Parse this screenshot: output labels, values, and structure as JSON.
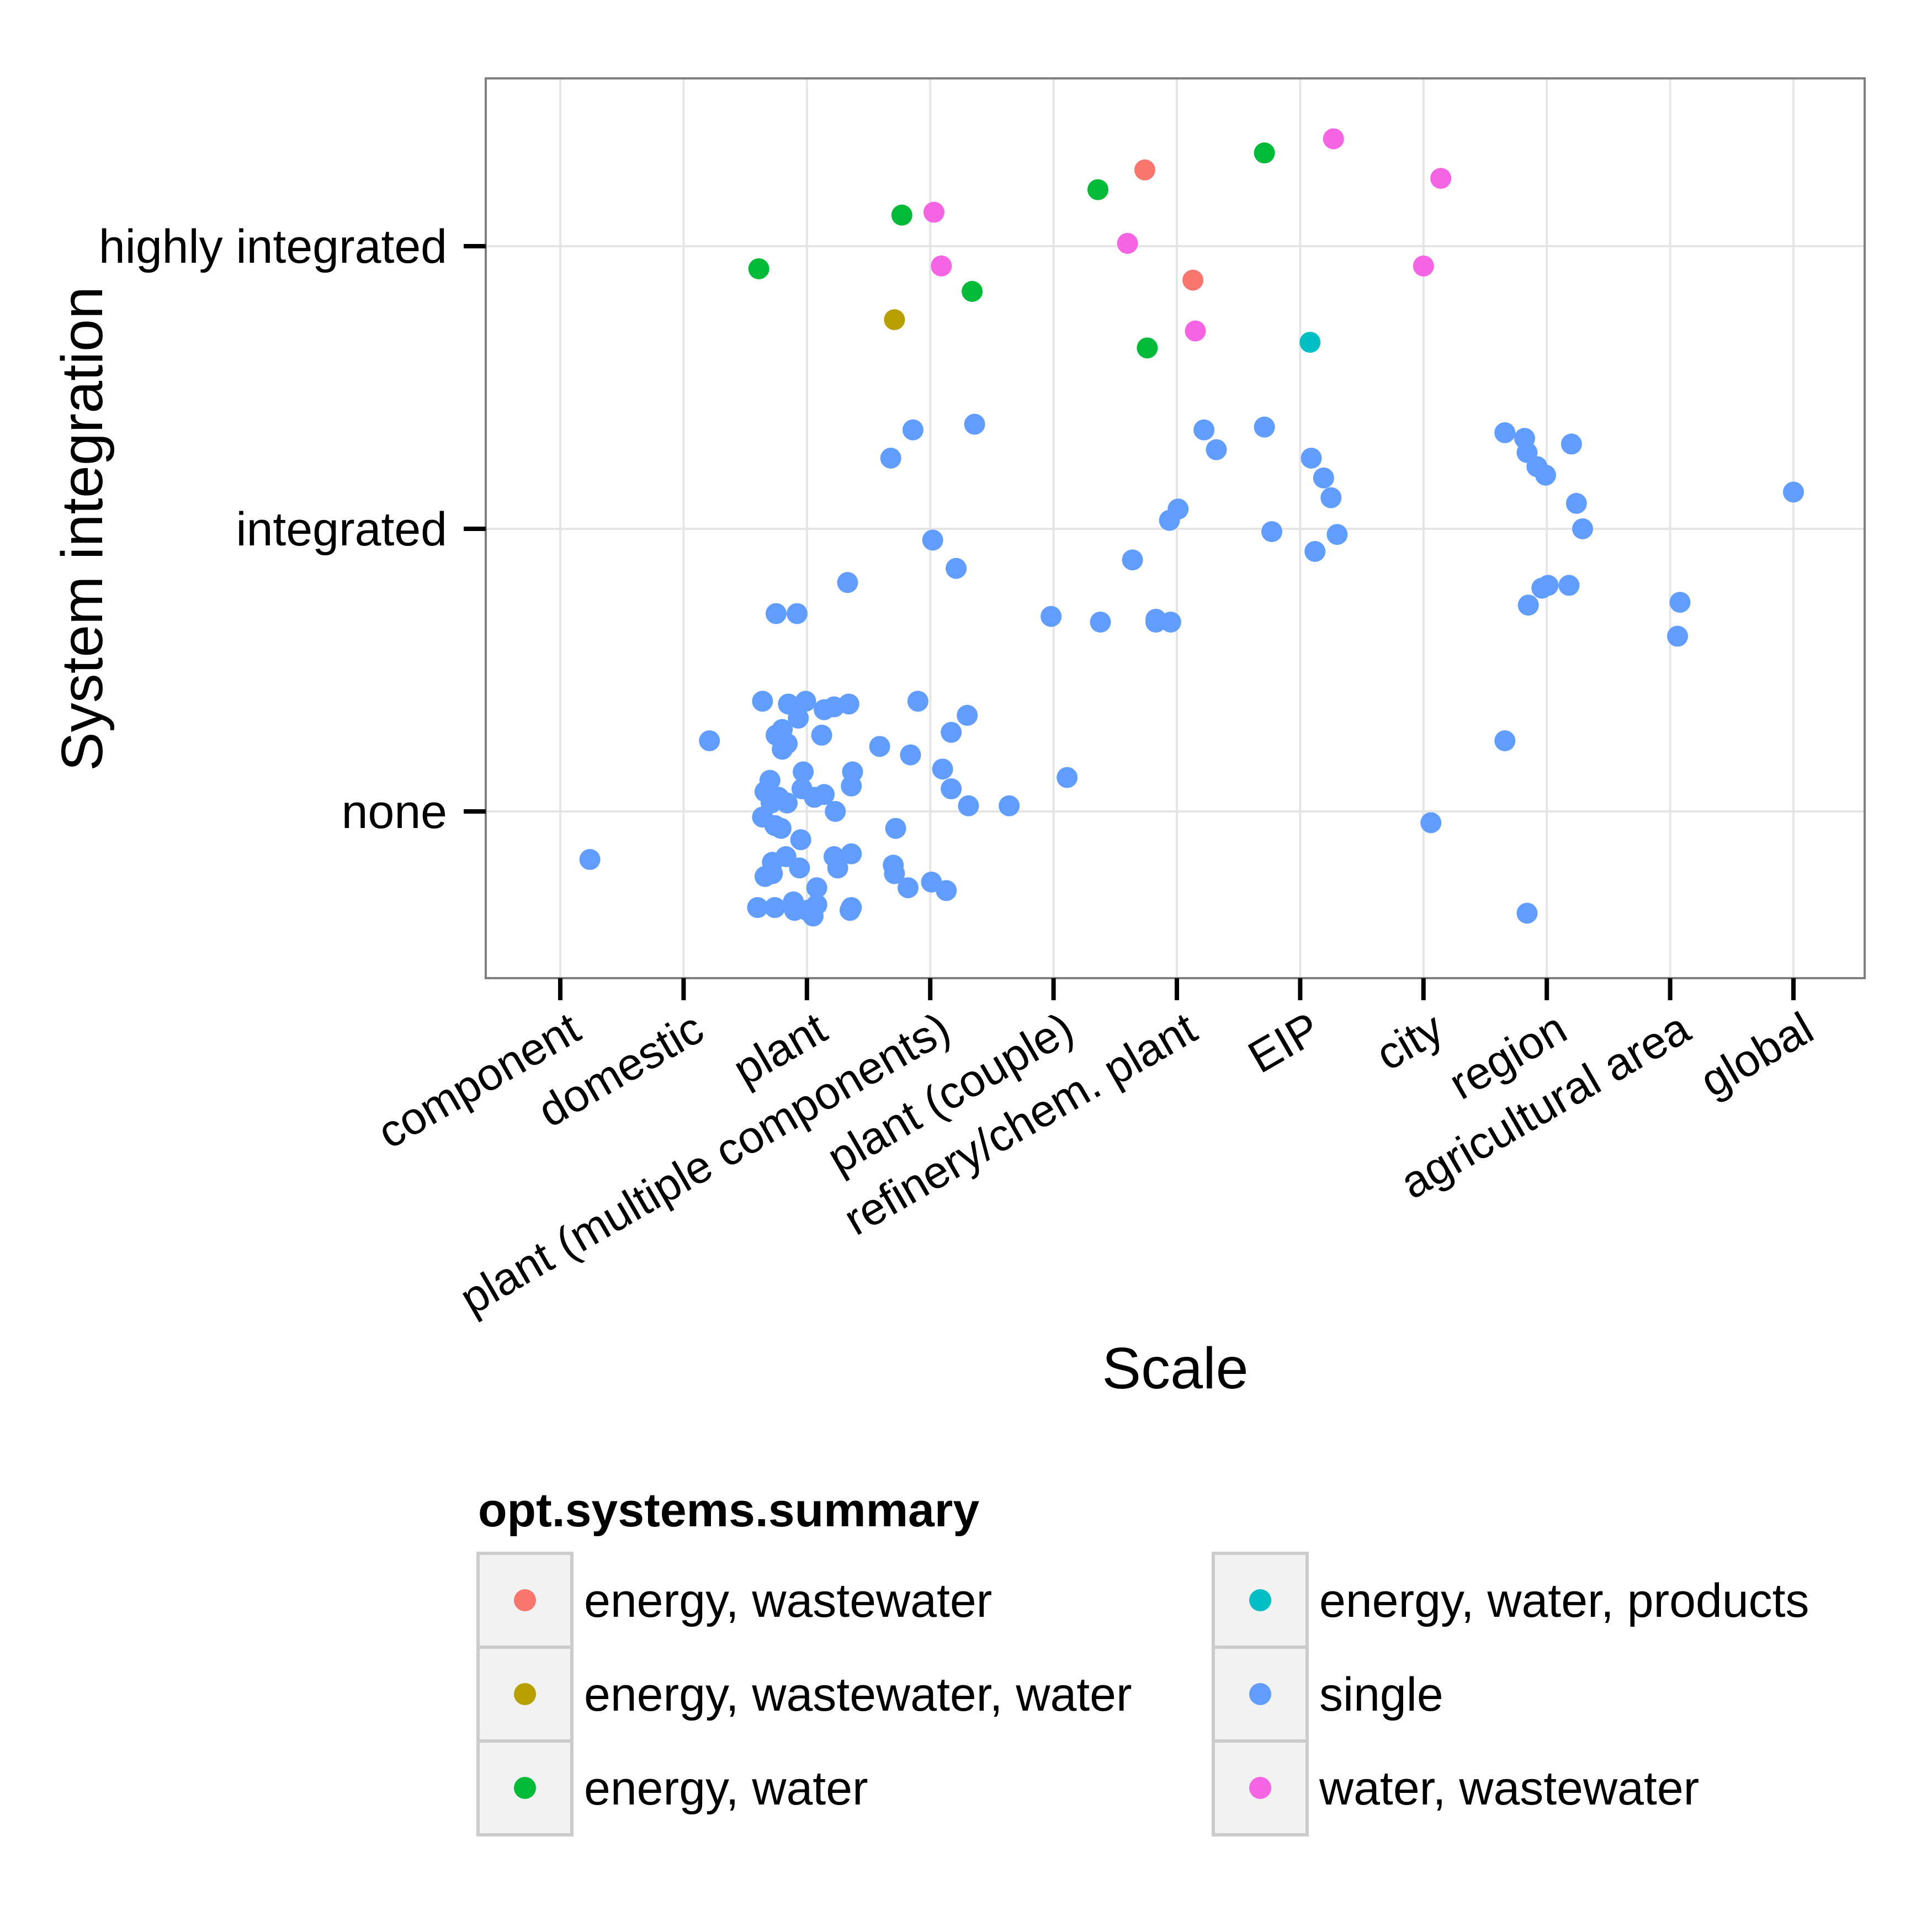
{
  "chart_data": {
    "type": "scatter",
    "title": "",
    "xlabel": "Scale",
    "ylabel": "System integration",
    "x_categories": [
      "component",
      "domestic",
      "plant",
      "plant (multiple components)",
      "plant (couple)",
      "refinery/chem. plant",
      "EIP",
      "city",
      "region",
      "agricultural area",
      "global"
    ],
    "y_categories": [
      "none",
      "integrated",
      "highly integrated"
    ],
    "ylim": [
      -0.6,
      2.6
    ],
    "grid": true,
    "legend": {
      "title": "opt.systems.summary",
      "placement": "bottom",
      "columns": 2,
      "entries": [
        {
          "label": "energy, wastewater",
          "color": "#F8766D"
        },
        {
          "label": "energy, wastewater, water",
          "color": "#B79F00"
        },
        {
          "label": "energy, water",
          "color": "#00BA38"
        },
        {
          "label": "energy, water, products",
          "color": "#00BFC4"
        },
        {
          "label": "single",
          "color": "#619CFF"
        },
        {
          "label": "water, wastewater",
          "color": "#F564E3"
        }
      ]
    },
    "series": [
      {
        "name": "energy, wastewater",
        "color": "#F8766D",
        "points": [
          {
            "x": 5.74,
            "y": 2.27
          },
          {
            "x": 6.13,
            "y": 1.88
          }
        ]
      },
      {
        "name": "energy, wastewater, water",
        "color": "#B79F00",
        "points": [
          {
            "x": 3.71,
            "y": 1.74
          }
        ]
      },
      {
        "name": "energy, water",
        "color": "#00BA38",
        "points": [
          {
            "x": 2.61,
            "y": 1.92
          },
          {
            "x": 3.77,
            "y": 2.11
          },
          {
            "x": 4.34,
            "y": 1.84
          },
          {
            "x": 5.36,
            "y": 2.2
          },
          {
            "x": 5.76,
            "y": 1.64
          },
          {
            "x": 6.71,
            "y": 2.33
          }
        ]
      },
      {
        "name": "energy, water, products",
        "color": "#00BFC4",
        "points": [
          {
            "x": 7.08,
            "y": 1.66
          }
        ]
      },
      {
        "name": "single",
        "color": "#619CFF",
        "points": [
          {
            "x": 1.24,
            "y": -0.17
          },
          {
            "x": 2.21,
            "y": 0.25
          },
          {
            "x": 2.64,
            "y": 0.39
          },
          {
            "x": 2.75,
            "y": 0.7
          },
          {
            "x": 2.92,
            "y": 0.7
          },
          {
            "x": 2.85,
            "y": 0.38
          },
          {
            "x": 2.99,
            "y": 0.39
          },
          {
            "x": 2.8,
            "y": 0.29
          },
          {
            "x": 2.93,
            "y": 0.33
          },
          {
            "x": 2.75,
            "y": 0.27
          },
          {
            "x": 2.84,
            "y": 0.24
          },
          {
            "x": 2.8,
            "y": 0.22
          },
          {
            "x": 3.12,
            "y": 0.27
          },
          {
            "x": 3.14,
            "y": 0.36
          },
          {
            "x": 3.22,
            "y": 0.37
          },
          {
            "x": 3.34,
            "y": 0.38
          },
          {
            "x": 3.33,
            "y": 0.81
          },
          {
            "x": 2.7,
            "y": 0.11
          },
          {
            "x": 2.71,
            "y": 0.03
          },
          {
            "x": 2.66,
            "y": 0.07
          },
          {
            "x": 2.77,
            "y": 0.05
          },
          {
            "x": 2.84,
            "y": 0.03
          },
          {
            "x": 2.96,
            "y": 0.08
          },
          {
            "x": 2.97,
            "y": 0.14
          },
          {
            "x": 3.06,
            "y": 0.05
          },
          {
            "x": 3.14,
            "y": 0.06
          },
          {
            "x": 3.36,
            "y": 0.09
          },
          {
            "x": 3.37,
            "y": 0.14
          },
          {
            "x": 3.23,
            "y": 0.0
          },
          {
            "x": 2.64,
            "y": -0.02
          },
          {
            "x": 2.74,
            "y": -0.05
          },
          {
            "x": 2.79,
            "y": -0.06
          },
          {
            "x": 2.72,
            "y": -0.18
          },
          {
            "x": 2.83,
            "y": -0.16
          },
          {
            "x": 2.95,
            "y": -0.1
          },
          {
            "x": 2.94,
            "y": -0.2
          },
          {
            "x": 2.66,
            "y": -0.23
          },
          {
            "x": 2.72,
            "y": -0.22
          },
          {
            "x": 3.22,
            "y": -0.16
          },
          {
            "x": 3.25,
            "y": -0.2
          },
          {
            "x": 3.36,
            "y": -0.15
          },
          {
            "x": 3.08,
            "y": -0.27
          },
          {
            "x": 3.08,
            "y": -0.33
          },
          {
            "x": 2.6,
            "y": -0.34
          },
          {
            "x": 2.74,
            "y": -0.34
          },
          {
            "x": 2.89,
            "y": -0.32
          },
          {
            "x": 2.9,
            "y": -0.35
          },
          {
            "x": 3.0,
            "y": -0.35
          },
          {
            "x": 3.05,
            "y": -0.37
          },
          {
            "x": 3.35,
            "y": -0.35
          },
          {
            "x": 3.36,
            "y": -0.34
          },
          {
            "x": 3.68,
            "y": 1.25
          },
          {
            "x": 3.86,
            "y": 1.35
          },
          {
            "x": 4.36,
            "y": 1.37
          },
          {
            "x": 4.02,
            "y": 0.96
          },
          {
            "x": 4.21,
            "y": 0.86
          },
          {
            "x": 3.9,
            "y": 0.39
          },
          {
            "x": 4.3,
            "y": 0.34
          },
          {
            "x": 4.17,
            "y": 0.28
          },
          {
            "x": 3.59,
            "y": 0.23
          },
          {
            "x": 3.84,
            "y": 0.2
          },
          {
            "x": 4.1,
            "y": 0.15
          },
          {
            "x": 4.17,
            "y": 0.08
          },
          {
            "x": 4.31,
            "y": 0.02
          },
          {
            "x": 4.64,
            "y": 0.02
          },
          {
            "x": 3.72,
            "y": -0.06
          },
          {
            "x": 3.7,
            "y": -0.19
          },
          {
            "x": 3.71,
            "y": -0.22
          },
          {
            "x": 3.82,
            "y": -0.27
          },
          {
            "x": 4.01,
            "y": -0.25
          },
          {
            "x": 4.13,
            "y": -0.28
          },
          {
            "x": 4.98,
            "y": 0.69
          },
          {
            "x": 5.11,
            "y": 0.12
          },
          {
            "x": 5.38,
            "y": 0.67
          },
          {
            "x": 5.64,
            "y": 0.89
          },
          {
            "x": 5.83,
            "y": 0.68
          },
          {
            "x": 5.83,
            "y": 0.67
          },
          {
            "x": 5.95,
            "y": 0.67
          },
          {
            "x": 5.94,
            "y": 1.03
          },
          {
            "x": 6.01,
            "y": 1.07
          },
          {
            "x": 6.22,
            "y": 1.35
          },
          {
            "x": 6.32,
            "y": 1.28
          },
          {
            "x": 6.71,
            "y": 1.36
          },
          {
            "x": 6.77,
            "y": 0.99
          },
          {
            "x": 7.09,
            "y": 1.25
          },
          {
            "x": 7.19,
            "y": 1.18
          },
          {
            "x": 7.25,
            "y": 1.11
          },
          {
            "x": 7.12,
            "y": 0.92
          },
          {
            "x": 7.3,
            "y": 0.98
          },
          {
            "x": 8.06,
            "y": -0.04
          },
          {
            "x": 8.66,
            "y": 1.34
          },
          {
            "x": 8.82,
            "y": 1.32
          },
          {
            "x": 8.84,
            "y": 1.27
          },
          {
            "x": 8.92,
            "y": 1.22
          },
          {
            "x": 8.99,
            "y": 1.19
          },
          {
            "x": 9.2,
            "y": 1.3
          },
          {
            "x": 9.24,
            "y": 1.09
          },
          {
            "x": 9.29,
            "y": 1.0
          },
          {
            "x": 9.18,
            "y": 0.8
          },
          {
            "x": 8.96,
            "y": 0.79
          },
          {
            "x": 9.01,
            "y": 0.8
          },
          {
            "x": 8.85,
            "y": 0.73
          },
          {
            "x": 8.66,
            "y": 0.25
          },
          {
            "x": 8.84,
            "y": -0.36
          },
          {
            "x": 10.08,
            "y": 0.74
          },
          {
            "x": 10.06,
            "y": 0.62
          },
          {
            "x": 11.0,
            "y": 1.13
          }
        ]
      },
      {
        "name": "water, wastewater",
        "color": "#F564E3",
        "points": [
          {
            "x": 4.03,
            "y": 2.12
          },
          {
            "x": 4.09,
            "y": 1.93
          },
          {
            "x": 5.6,
            "y": 2.01
          },
          {
            "x": 6.15,
            "y": 1.7
          },
          {
            "x": 7.27,
            "y": 2.38
          },
          {
            "x": 8.14,
            "y": 2.24
          },
          {
            "x": 8.0,
            "y": 1.93
          }
        ]
      }
    ]
  }
}
